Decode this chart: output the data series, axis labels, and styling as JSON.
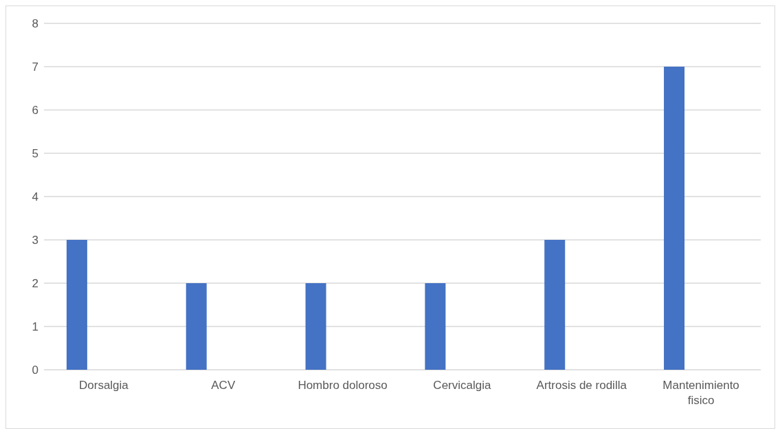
{
  "chart_data": {
    "type": "bar",
    "categories": [
      "Dorsalgia",
      "ACV",
      "Hombro doloroso",
      "Cervicalgia",
      "Artrosis de rodilla",
      "Mantenimiento fisico"
    ],
    "values": [
      3,
      2,
      2,
      2,
      3,
      7
    ],
    "color": "#4472c4",
    "ylim": [
      0,
      8
    ],
    "yticks": [
      0,
      1,
      2,
      3,
      4,
      5,
      6,
      7,
      8
    ],
    "grid": "y"
  }
}
